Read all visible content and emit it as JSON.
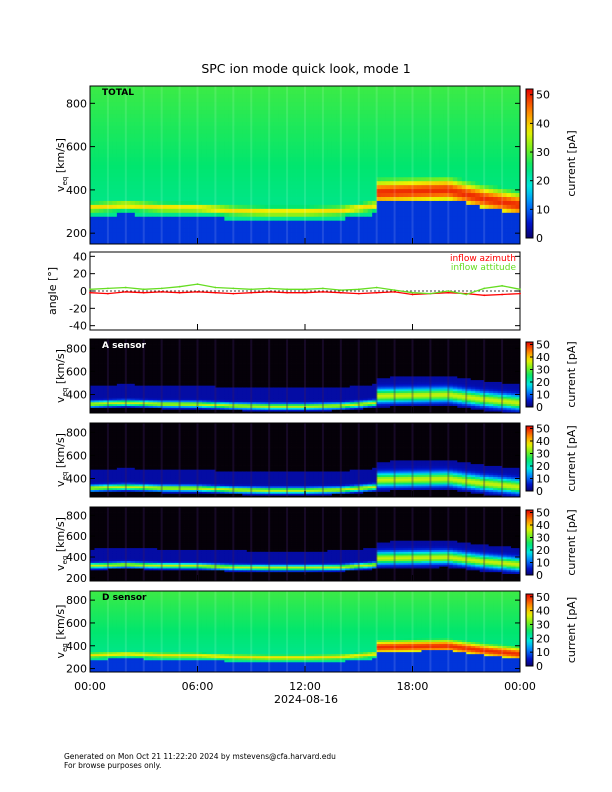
{
  "title": "SPC ion mode quick look, mode 1",
  "footer": {
    "generated": "Generated on Mon Oct 21 11:22:20 2024 by mstevens@cfa.harvard.edu",
    "note": "For browse purposes only."
  },
  "chart_data": [
    {
      "type": "heatmap",
      "panel_label": "TOTAL",
      "ylabel_main": "v",
      "ylabel_sub": "eq",
      "ylabel_unit": "[km/s]",
      "ylim": [
        150,
        880
      ],
      "yticks": [
        200,
        400,
        600,
        800
      ],
      "colorbar": {
        "label": "current [pA]",
        "range": [
          0,
          52
        ],
        "ticks": [
          0,
          10,
          20,
          30,
          40,
          50
        ]
      },
      "xlim_hours": [
        0,
        24
      ],
      "peak_velocity_profile": {
        "hours": [
          0,
          2,
          4,
          6,
          8,
          10,
          12,
          14,
          16,
          16.1,
          18,
          20,
          22,
          24
        ],
        "v": [
          320,
          330,
          320,
          318,
          305,
          300,
          300,
          305,
          330,
          390,
          395,
          400,
          360,
          330
        ]
      },
      "background_level": "mid"
    },
    {
      "type": "line",
      "ylabel": "angle [°]",
      "ylim": [
        -45,
        45
      ],
      "yticks": [
        -40,
        -20,
        0,
        20,
        40
      ],
      "xlim_hours": [
        0,
        24
      ],
      "series": [
        {
          "name": "inflow azimuth",
          "color": "#ff0000",
          "x": [
            0,
            1,
            2,
            3,
            4,
            5,
            6,
            7,
            8,
            9,
            10,
            11,
            12,
            13,
            14,
            15,
            16,
            17,
            18,
            19,
            20,
            21,
            22,
            23,
            24
          ],
          "y": [
            -2,
            -3,
            -1,
            -2,
            -1,
            -2,
            -1,
            -2,
            -3,
            -2,
            -1,
            -2,
            -2,
            -1,
            -2,
            -3,
            -2,
            -1,
            -4,
            -3,
            -2,
            -3,
            -5,
            -4,
            -3
          ]
        },
        {
          "name": "inflow attitude",
          "color": "#66dd22",
          "x": [
            0,
            1,
            2,
            3,
            4,
            5,
            6,
            7,
            8,
            9,
            10,
            11,
            12,
            13,
            14,
            15,
            16,
            17,
            18,
            19,
            20,
            21,
            22,
            23,
            24
          ],
          "y": [
            2,
            3,
            4,
            2,
            3,
            5,
            8,
            4,
            3,
            2,
            3,
            2,
            2,
            3,
            1,
            2,
            4,
            1,
            -2,
            -3,
            0,
            -4,
            3,
            6,
            2
          ]
        }
      ]
    },
    {
      "type": "heatmap",
      "panel_label": "A sensor",
      "ylabel_main": "v",
      "ylabel_sub": "eq",
      "ylabel_unit": "[km/s]",
      "ylim": [
        240,
        880
      ],
      "yticks": [
        400,
        600,
        800
      ],
      "colorbar": {
        "label": "current [pA]",
        "range": [
          0,
          52
        ],
        "ticks": [
          0,
          10,
          20,
          30,
          40,
          50
        ]
      },
      "xlim_hours": [
        0,
        24
      ],
      "peak_velocity_profile": {
        "hours": [
          0,
          2,
          4,
          6,
          8,
          10,
          12,
          14,
          16,
          16.1,
          18,
          20,
          22,
          24
        ],
        "v": [
          320,
          330,
          320,
          318,
          305,
          300,
          300,
          305,
          330,
          390,
          395,
          400,
          360,
          330
        ]
      },
      "background_level": "dark"
    },
    {
      "type": "heatmap",
      "panel_label": "",
      "ylabel_main": "v",
      "ylabel_sub": "eq",
      "ylabel_unit": "[km/s]",
      "ylim": [
        240,
        880
      ],
      "yticks": [
        400,
        600,
        800
      ],
      "colorbar": {
        "label": "current [pA]",
        "range": [
          0,
          52
        ],
        "ticks": [
          0,
          10,
          20,
          30,
          40,
          50
        ]
      },
      "xlim_hours": [
        0,
        24
      ],
      "peak_velocity_profile": {
        "hours": [
          0,
          2,
          4,
          6,
          8,
          10,
          12,
          14,
          16,
          16.1,
          18,
          20,
          22,
          24
        ],
        "v": [
          320,
          330,
          320,
          318,
          305,
          300,
          300,
          305,
          330,
          390,
          395,
          400,
          360,
          330
        ]
      },
      "background_level": "dark"
    },
    {
      "type": "heatmap",
      "panel_label": "",
      "ylabel_main": "v",
      "ylabel_sub": "eq",
      "ylabel_unit": "[km/s]",
      "ylim": [
        170,
        880
      ],
      "yticks": [
        200,
        400,
        600,
        800
      ],
      "colorbar": {
        "label": "current [pA]",
        "range": [
          0,
          52
        ],
        "ticks": [
          0,
          10,
          20,
          30,
          40,
          50
        ]
      },
      "xlim_hours": [
        0,
        24
      ],
      "peak_velocity_profile": {
        "hours": [
          0,
          2,
          4,
          6,
          8,
          10,
          12,
          14,
          16,
          16.1,
          18,
          20,
          22,
          24
        ],
        "v": [
          320,
          330,
          320,
          318,
          305,
          300,
          300,
          305,
          330,
          390,
          395,
          400,
          360,
          330
        ]
      },
      "background_level": "dark"
    },
    {
      "type": "heatmap",
      "panel_label": "D sensor",
      "ylabel_main": "v",
      "ylabel_sub": "eq",
      "ylabel_unit": "[km/s]",
      "ylim": [
        170,
        880
      ],
      "yticks": [
        200,
        400,
        600,
        800
      ],
      "colorbar": {
        "label": "current [pA]",
        "range": [
          0,
          52
        ],
        "ticks": [
          0,
          10,
          20,
          30,
          40,
          50
        ]
      },
      "xlim_hours": [
        0,
        24
      ],
      "peak_velocity_profile": {
        "hours": [
          0,
          2,
          4,
          6,
          8,
          10,
          12,
          14,
          16,
          16.1,
          18,
          20,
          22,
          24
        ],
        "v": [
          320,
          330,
          320,
          318,
          305,
          300,
          300,
          305,
          330,
          390,
          395,
          400,
          360,
          330
        ]
      },
      "background_level": "mid"
    }
  ],
  "x_axis": {
    "tick_labels": [
      "00:00",
      "06:00",
      "12:00",
      "18:00",
      "00:00"
    ],
    "tick_hours": [
      0,
      6,
      12,
      18,
      24
    ],
    "date_label": "2024-08-16"
  }
}
